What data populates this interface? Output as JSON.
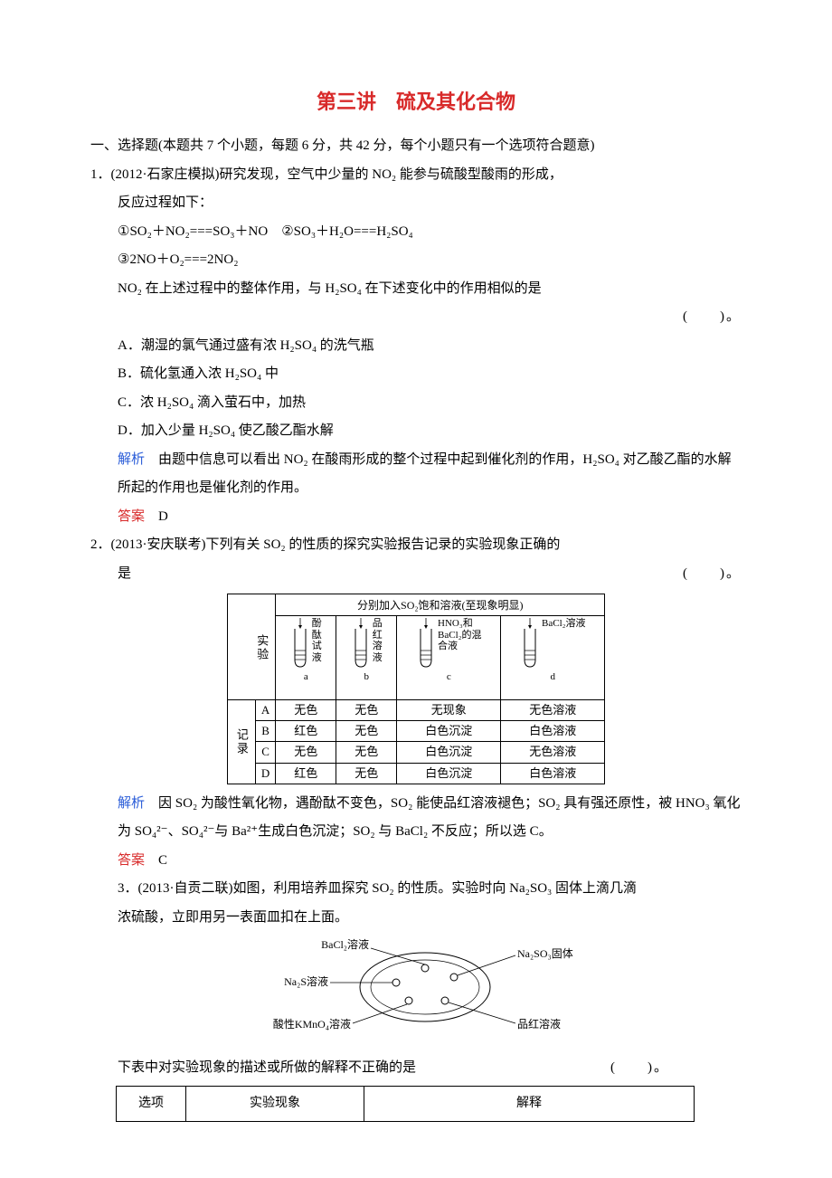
{
  "title": "第三讲　硫及其化合物",
  "section_heading": "一、选择题(本题共 7 个小题，每题 6 分，共 42 分，每个小题只有一个选项符合题意)",
  "q1": {
    "num": "1．",
    "source": "(2012·石家庄模拟)研究发现，空气中少量的 NO₂ 能参与硫酸型酸雨的形成，",
    "line2": "反应过程如下：",
    "eq1": "①SO₂＋NO₂===SO₃＋NO　②SO₃＋H₂O===H₂SO₄",
    "eq2": "③2NO＋O₂===2NO₂",
    "line3": "NO₂ 在上述过程中的整体作用，与 H₂SO₄ 在下述变化中的作用相似的是",
    "paren": "(　　)。",
    "A": "A．潮湿的氯气通过盛有浓 H₂SO₄ 的洗气瓶",
    "B": "B．硫化氢通入浓 H₂SO₄ 中",
    "C": "C．浓 H₂SO₄ 滴入萤石中，加热",
    "D": "D．加入少量 H₂SO₄ 使乙酸乙酯水解",
    "expl_label": "解析",
    "expl": "　由题中信息可以看出 NO₂ 在酸雨形成的整个过程中起到催化剂的作用，H₂SO₄ 对乙酸乙酯的水解所起的作用也是催化剂的作用。",
    "ans_label": "答案",
    "ans": "　D"
  },
  "q2": {
    "num": "2．",
    "stem1": "(2013·安庆联考)下列有关 SO₂ 的性质的探究实验报告记录的实验现象正确的",
    "stem2": "是",
    "paren": "(　　)。",
    "table": {
      "header_exp": "实验",
      "header_top": "分别加入SO₂饱和溶液(至现象明显)",
      "tubes": [
        {
          "label": "酚酞试液",
          "letter": "a"
        },
        {
          "label": "品红溶液",
          "letter": "b"
        },
        {
          "label": "HNO₃和BaCl₂的混合液",
          "letter": "c"
        },
        {
          "label": "BaCl₂溶液",
          "letter": "d"
        }
      ],
      "rec_label": "记录",
      "rows": [
        {
          "k": "A",
          "cells": [
            "无色",
            "无色",
            "无现象",
            "无色溶液"
          ]
        },
        {
          "k": "B",
          "cells": [
            "红色",
            "无色",
            "白色沉淀",
            "白色溶液"
          ]
        },
        {
          "k": "C",
          "cells": [
            "无色",
            "无色",
            "白色沉淀",
            "无色溶液"
          ]
        },
        {
          "k": "D",
          "cells": [
            "红色",
            "无色",
            "白色沉淀",
            "白色溶液"
          ]
        }
      ]
    },
    "expl_label": "解析",
    "expl": "　因 SO₂ 为酸性氧化物，遇酚酞不变色，SO₂ 能使品红溶液褪色；SO₂ 具有强还原性，被 HNO₃ 氧化为 SO₄²⁻、SO₄²⁻与 Ba²⁺生成白色沉淀；SO₂ 与 BaCl₂ 不反应；所以选 C。",
    "ans_label": "答案",
    "ans": "　C"
  },
  "q3": {
    "num": "3．",
    "stem1": "(2013·自贡二联)如图，利用培养皿探究 SO₂ 的性质。实验时向 Na₂SO₃ 固体上滴几滴",
    "stem2": "浓硫酸，立即用另一表面皿扣在上面。",
    "dish": {
      "labels": [
        "BaCl₂溶液",
        "Na₂SO₃固体",
        "Na₂S溶液",
        "酸性KMnO₄溶液",
        "品红溶液"
      ],
      "stroke": "#000000",
      "fill": "#ffffff"
    },
    "line3": "下表中对实验现象的描述或所做的解释不正确的是",
    "paren": "(　　)。",
    "table": {
      "h1": "选项",
      "h2": "实验现象",
      "h3": "解释"
    }
  }
}
